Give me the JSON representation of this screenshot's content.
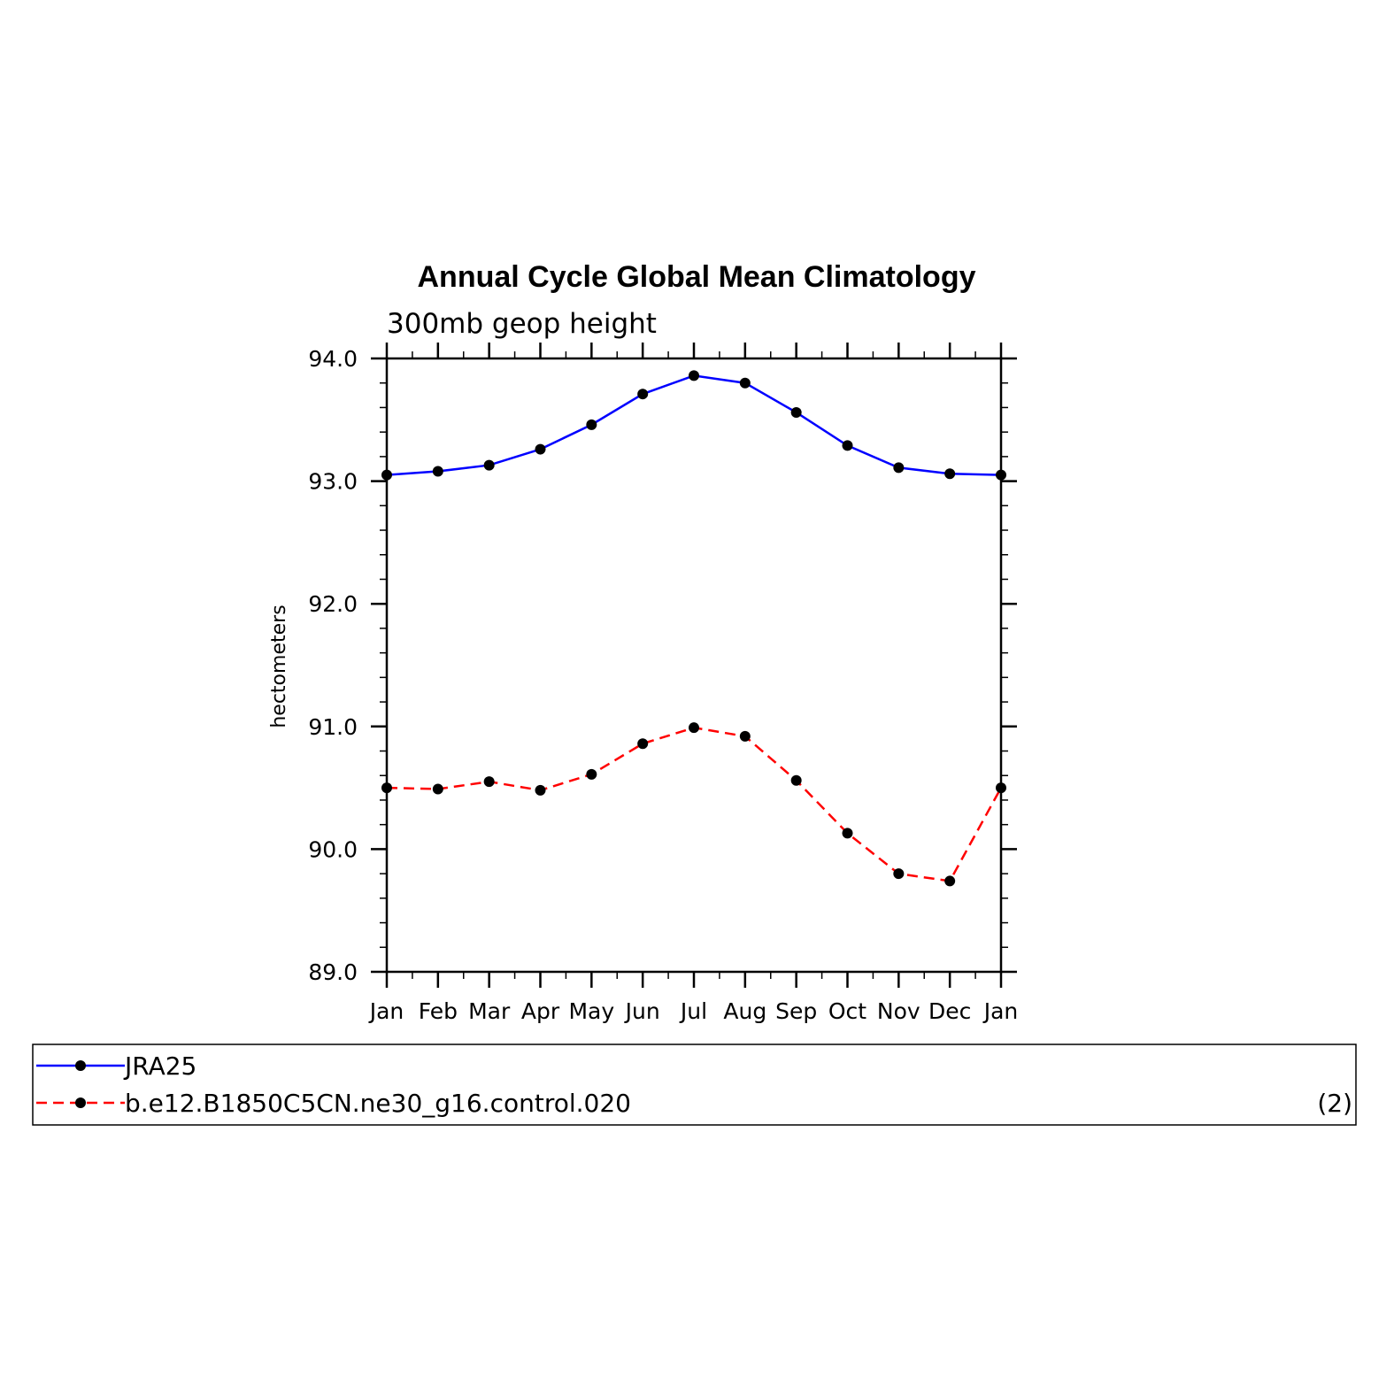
{
  "chart_data": {
    "type": "line",
    "title": "Annual Cycle Global Mean Climatology",
    "subtitle": "300mb geop height",
    "xlabel": "",
    "ylabel": "hectometers",
    "categories": [
      "Jan",
      "Feb",
      "Mar",
      "Apr",
      "May",
      "Jun",
      "Jul",
      "Aug",
      "Sep",
      "Oct",
      "Nov",
      "Dec",
      "Jan"
    ],
    "ylim": [
      89.0,
      94.0
    ],
    "yticks": [
      "89.0",
      "90.0",
      "91.0",
      "92.0",
      "93.0",
      "94.0"
    ],
    "grid": false,
    "series": [
      {
        "name": "JRA25",
        "color": "#0000ff",
        "dash": "solid",
        "values": [
          93.05,
          93.08,
          93.13,
          93.26,
          93.46,
          93.71,
          93.86,
          93.8,
          93.56,
          93.29,
          93.11,
          93.06,
          93.05
        ]
      },
      {
        "name": "b.e12.B1850C5CN.ne30_g16.control.020",
        "color": "#ff0000",
        "dash": "dashed",
        "values": [
          90.5,
          90.49,
          90.55,
          90.48,
          90.61,
          90.86,
          90.99,
          90.92,
          90.56,
          90.13,
          89.8,
          89.74,
          90.5
        ]
      }
    ],
    "legend": {
      "placement": "bottom",
      "note": "(2)"
    }
  }
}
